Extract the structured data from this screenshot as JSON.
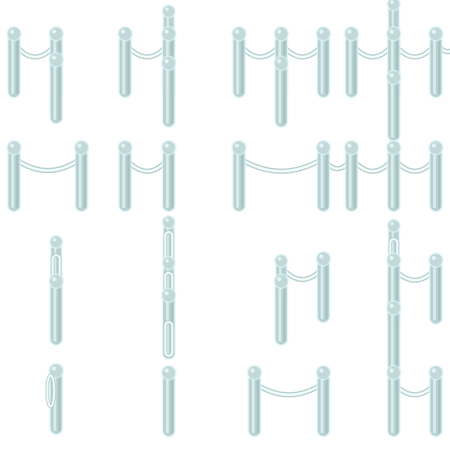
{
  "sprite_sheet": {
    "asset": "rope-barrier-stanchion-tiles",
    "colors": {
      "background": "#ffffff",
      "post_fill": "#b9d1d1",
      "post_shade": "#9fbcbc",
      "post_highlight": "#e6f3f3",
      "post_cap": "#c3d8d8",
      "outline_glow": "#d8f3f7",
      "rope": "#f2fbfb",
      "rope_edge": "#a9c4c4"
    }
  }
}
